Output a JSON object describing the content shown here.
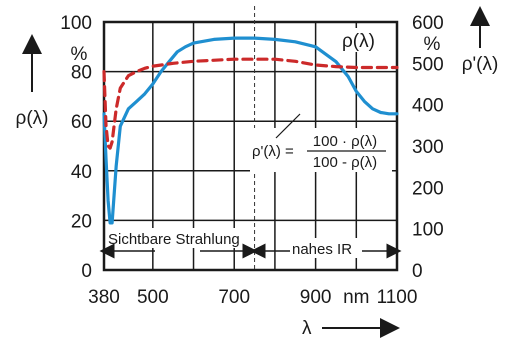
{
  "chart_data": {
    "type": "line",
    "x_ticks": [
      380,
      500,
      700,
      900,
      1100
    ],
    "x_unit": "nm",
    "xlabel": "λ",
    "xlim": [
      380,
      1100
    ],
    "y_left_ticks": [
      0,
      20,
      40,
      60,
      80,
      100
    ],
    "y_left_unit": "%",
    "y_left_label": "ρ(λ)",
    "ylim_left": [
      0,
      100
    ],
    "y_right_ticks": [
      0,
      100,
      200,
      300,
      400,
      500,
      600
    ],
    "y_right_unit": "%",
    "y_right_label": "ρ'(λ)",
    "ylim_right": [
      0,
      600
    ],
    "grid": true,
    "vertical_marker_x": 750,
    "series": [
      {
        "name": "ρ(λ)",
        "axis": "left",
        "style": "solid",
        "color": "#1f8fd0",
        "x": [
          380,
          385,
          390,
          395,
          400,
          410,
          420,
          440,
          460,
          480,
          500,
          520,
          540,
          560,
          580,
          600,
          650,
          700,
          750,
          800,
          850,
          900,
          950,
          980,
          1000,
          1020,
          1040,
          1060,
          1080,
          1100
        ],
        "y": [
          63,
          45,
          28,
          19,
          19,
          42,
          58,
          65,
          68,
          71,
          75,
          80,
          84,
          88,
          90,
          91.5,
          93,
          93.5,
          93.5,
          93,
          92,
          90,
          84,
          78,
          72,
          68,
          65,
          63.5,
          63,
          63
        ]
      },
      {
        "name": "ρ'(λ)",
        "axis": "right",
        "style": "dashed",
        "color": "#cc2a2a",
        "x": [
          380,
          385,
          390,
          395,
          400,
          410,
          420,
          440,
          460,
          480,
          500,
          550,
          600,
          700,
          800,
          850,
          900,
          950,
          1000,
          1100
        ],
        "y": [
          480,
          350,
          300,
          295,
          310,
          390,
          440,
          470,
          480,
          488,
          493,
          500,
          505,
          510,
          510,
          505,
          496,
          492,
          490,
          490
        ]
      }
    ],
    "annotations": {
      "visible_region": "Sichtbare Strahlung",
      "near_ir": "nahes IR",
      "formula_lhs": "ρ'(λ) =",
      "formula_numerator": "100 · ρ(λ)",
      "formula_denominator": "100 - ρ(λ)"
    }
  }
}
